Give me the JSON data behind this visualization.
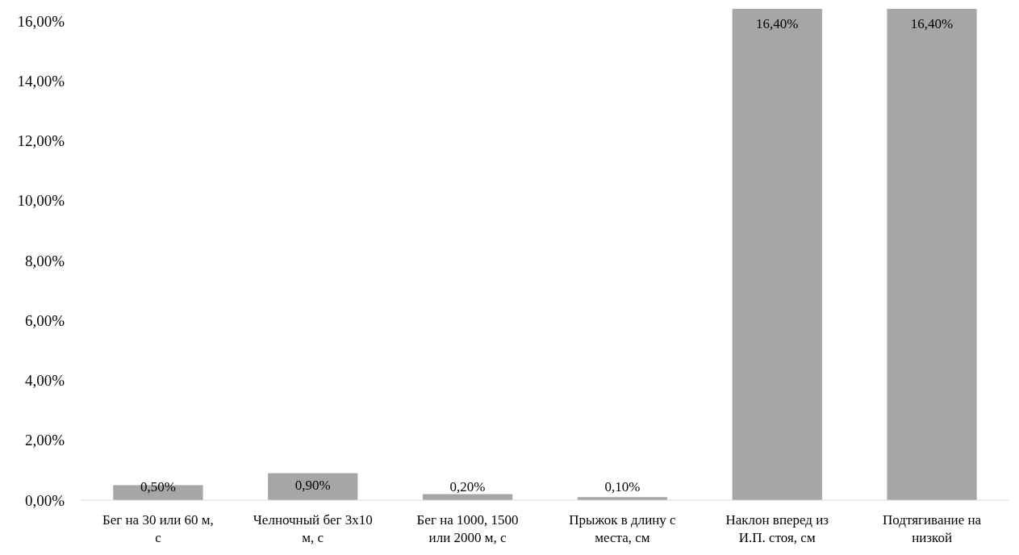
{
  "chart_data": {
    "type": "bar",
    "categories": [
      "Бег на 30 или 60 м, с",
      "Челночный бег 3х10 м, с",
      "Бег на 1000, 1500 или 2000 м, с",
      "Прыжок в длину с места, см",
      "Наклон вперед из И.П. стоя, см",
      "Подтягивание на низкой"
    ],
    "values": [
      0.5,
      0.9,
      0.2,
      0.1,
      16.4,
      16.4
    ],
    "value_labels": [
      "0,50%",
      "0,90%",
      "0,20%",
      "0,10%",
      "16,40%",
      "16,40%"
    ],
    "color": "#a6a6a6",
    "ylim": [
      0,
      16.4
    ],
    "yticks": [
      {
        "value": 0,
        "label": "0,00%"
      },
      {
        "value": 2,
        "label": "2,00%"
      },
      {
        "value": 4,
        "label": "4,00%"
      },
      {
        "value": 6,
        "label": "6,00%"
      },
      {
        "value": 8,
        "label": "8,00%"
      },
      {
        "value": 10,
        "label": "10,00%"
      },
      {
        "value": 12,
        "label": "12,00%"
      },
      {
        "value": 14,
        "label": "14,00%"
      },
      {
        "value": 16,
        "label": "16,00%"
      }
    ],
    "grid": false
  }
}
